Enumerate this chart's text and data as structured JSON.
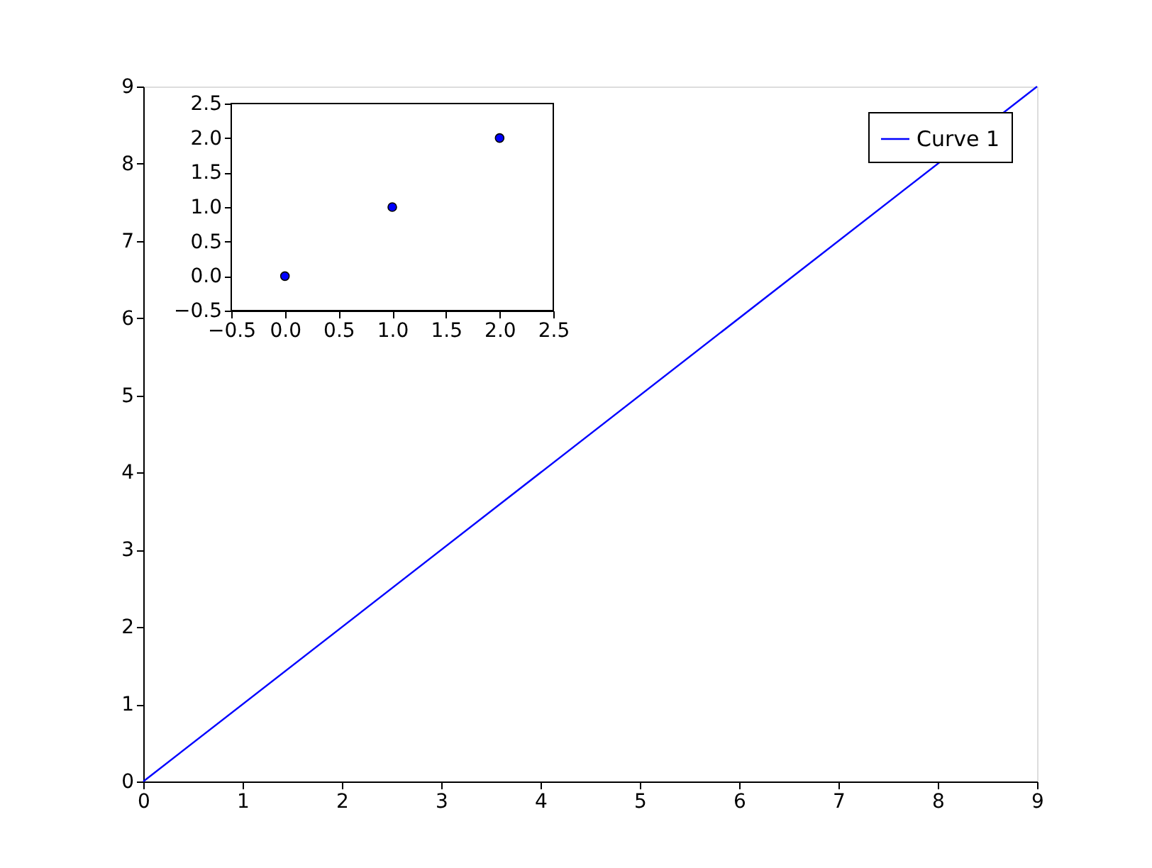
{
  "chart_data": [
    {
      "type": "line",
      "x": [
        0,
        9
      ],
      "series": [
        {
          "name": "Curve 1",
          "color": "#0000ff",
          "values": [
            0,
            9
          ]
        }
      ],
      "xlim": [
        0,
        9
      ],
      "ylim": [
        0,
        9
      ],
      "xticks": [
        0,
        1,
        2,
        3,
        4,
        5,
        6,
        7,
        8,
        9
      ],
      "yticks": [
        0,
        1,
        2,
        3,
        4,
        5,
        6,
        7,
        8,
        9
      ],
      "legend": "top right",
      "grid": false
    },
    {
      "type": "scatter",
      "x": [
        0,
        1,
        2
      ],
      "series": [
        {
          "color": "#0000ff",
          "values": [
            0,
            1,
            2
          ]
        }
      ],
      "marker": "circle",
      "xlim": [
        -0.5,
        2.5
      ],
      "ylim": [
        -0.5,
        2.5
      ],
      "xticks": [
        {
          "value": -0.5,
          "label": "−0.5"
        },
        {
          "value": 0,
          "label": "0.0"
        },
        0.5,
        {
          "value": 1,
          "label": "1.0"
        },
        1.5,
        {
          "value": 2,
          "label": "2.0"
        },
        2.5
      ],
      "yticks": [
        {
          "value": -0.5,
          "label": "−0.5"
        },
        {
          "value": 0,
          "label": "0.0"
        },
        0.5,
        {
          "value": 1,
          "label": "1.0"
        },
        1.5,
        {
          "value": 2,
          "label": "2.0"
        },
        2.5
      ],
      "grid": false
    }
  ]
}
